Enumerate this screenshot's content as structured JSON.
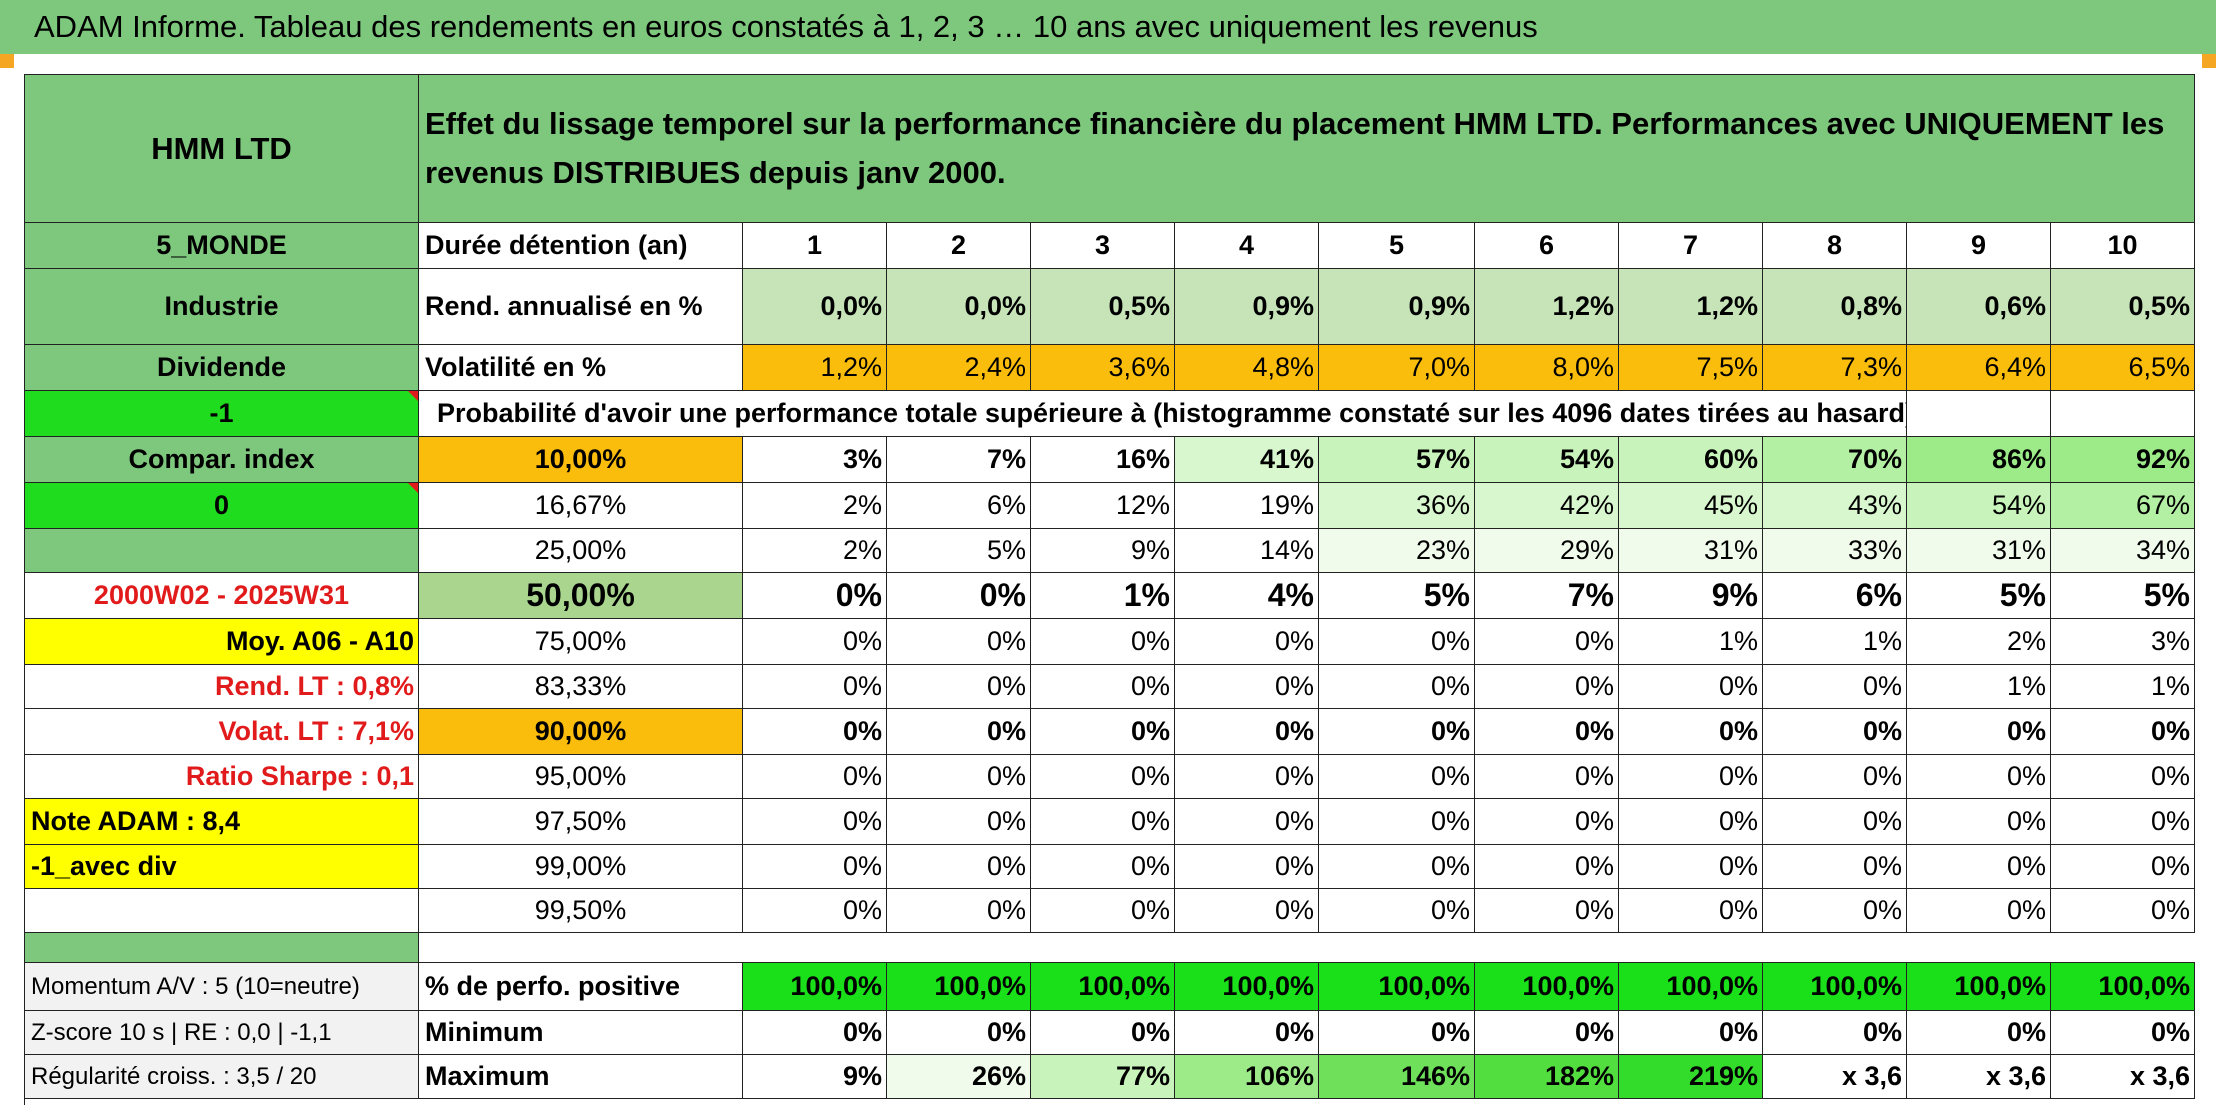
{
  "title": "ADAM Informe. Tableau des rendements en euros constatés à 1, 2, 3 … 10 ans avec uniquement les revenus",
  "left": {
    "fund": "HMM LTD",
    "zone": "5_MONDE",
    "sector": "Industrie",
    "type": "Dividende",
    "code1": "-1",
    "compar": "Compar. index",
    "code2": "0",
    "period": "2000W02 - 2025W31",
    "moy": "Moy. A06 - A10",
    "rend_lt": "Rend. LT :   0,8%",
    "volat_lt": "Volat. LT :   7,1%",
    "sharpe": "Ratio Sharpe :    0,1",
    "note": "Note ADAM : 8,4",
    "avec_div": "-1_avec div",
    "momentum": "Momentum A/V : 5 (10=neutre)",
    "zscore": "Z-score 10 s | RE : 0,0 | -1,1",
    "regularite": "Régularité croiss. : 3,5 / 20"
  },
  "header_text": "Effet du lissage temporel sur la performance financière du placement HMM LTD. Performances avec UNIQUEMENT les revenus DISTRIBUES depuis janv 2000.",
  "duree_label": "Durée détention (an)",
  "years": [
    "1",
    "2",
    "3",
    "4",
    "5",
    "6",
    "7",
    "8",
    "9",
    "10"
  ],
  "rend_label": "Rend. annualisé en %",
  "rend": [
    "0,0%",
    "0,0%",
    "0,5%",
    "0,9%",
    "0,9%",
    "1,2%",
    "1,2%",
    "0,8%",
    "0,6%",
    "0,5%"
  ],
  "vol_label": "Volatilité en %",
  "vol": [
    "1,2%",
    "2,4%",
    "3,6%",
    "4,8%",
    "7,0%",
    "8,0%",
    "7,5%",
    "7,3%",
    "6,4%",
    "6,5%"
  ],
  "proba_label": "Probabilité d'avoir une performance totale supérieure à (histogramme constaté sur les 4096 dates tirées au hasard)",
  "thresholds": [
    {
      "label": "10,00%",
      "values": [
        "3%",
        "7%",
        "16%",
        "41%",
        "57%",
        "54%",
        "60%",
        "70%",
        "86%",
        "92%"
      ]
    },
    {
      "label": "16,67%",
      "values": [
        "2%",
        "6%",
        "12%",
        "19%",
        "36%",
        "42%",
        "45%",
        "43%",
        "54%",
        "67%"
      ]
    },
    {
      "label": "25,00%",
      "values": [
        "2%",
        "5%",
        "9%",
        "14%",
        "23%",
        "29%",
        "31%",
        "33%",
        "31%",
        "34%"
      ]
    },
    {
      "label": "50,00%",
      "values": [
        "0%",
        "0%",
        "1%",
        "4%",
        "5%",
        "7%",
        "9%",
        "6%",
        "5%",
        "5%"
      ]
    },
    {
      "label": "75,00%",
      "values": [
        "0%",
        "0%",
        "0%",
        "0%",
        "0%",
        "0%",
        "1%",
        "1%",
        "2%",
        "3%"
      ]
    },
    {
      "label": "83,33%",
      "values": [
        "0%",
        "0%",
        "0%",
        "0%",
        "0%",
        "0%",
        "0%",
        "0%",
        "1%",
        "1%"
      ]
    },
    {
      "label": "90,00%",
      "values": [
        "0%",
        "0%",
        "0%",
        "0%",
        "0%",
        "0%",
        "0%",
        "0%",
        "0%",
        "0%"
      ]
    },
    {
      "label": "95,00%",
      "values": [
        "0%",
        "0%",
        "0%",
        "0%",
        "0%",
        "0%",
        "0%",
        "0%",
        "0%",
        "0%"
      ]
    },
    {
      "label": "97,50%",
      "values": [
        "0%",
        "0%",
        "0%",
        "0%",
        "0%",
        "0%",
        "0%",
        "0%",
        "0%",
        "0%"
      ]
    },
    {
      "label": "99,00%",
      "values": [
        "0%",
        "0%",
        "0%",
        "0%",
        "0%",
        "0%",
        "0%",
        "0%",
        "0%",
        "0%"
      ]
    },
    {
      "label": "99,50%",
      "values": [
        "0%",
        "0%",
        "0%",
        "0%",
        "0%",
        "0%",
        "0%",
        "0%",
        "0%",
        "0%"
      ]
    }
  ],
  "pos_label": "% de perfo. positive",
  "pos": [
    "100,0%",
    "100,0%",
    "100,0%",
    "100,0%",
    "100,0%",
    "100,0%",
    "100,0%",
    "100,0%",
    "100,0%",
    "100,0%"
  ],
  "min_label": "Minimum",
  "min": [
    "0%",
    "0%",
    "0%",
    "0%",
    "0%",
    "0%",
    "0%",
    "0%",
    "0%",
    "0%"
  ],
  "max_label": "Maximum",
  "max": [
    "9%",
    "26%",
    "77%",
    "106%",
    "146%",
    "182%",
    "219%",
    "x 3,6",
    "x 3,6",
    "x 3,6"
  ],
  "colors": {
    "green_header": "#7ec87e",
    "light_green": "#c6e4b8",
    "orange": "#fbbd0b",
    "lime": "#1fdc1f",
    "yellow": "#ffff00",
    "red_text": "#e11b1b"
  }
}
